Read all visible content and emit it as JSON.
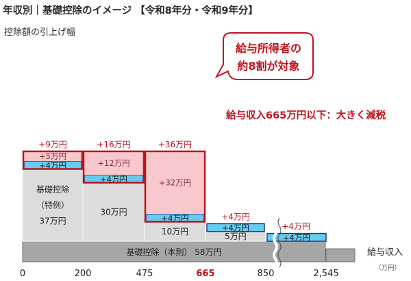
{
  "title": "年収別｜基礎控除のイメージ 【令和8年分・令和9年分】",
  "ylabel": "控除額の引上げ幅",
  "xlabel": "給与収入",
  "x_unit": "（万円）",
  "callout": {
    "line1": "給与所得者の",
    "line2": "約8割が対象"
  },
  "note": "給与収入665万円以下：大きく減税",
  "colors": {
    "gray": "#dcdcdc",
    "dark_gray": "#a6a6a6",
    "pink": "#f9c8cc",
    "blue": "#66ccf0",
    "red": "#c0121c",
    "navy": "#1e3a8a"
  },
  "chart_data": {
    "type": "stacked-bar",
    "x_ticks": [
      "0",
      "200",
      "475",
      "665",
      "850",
      "2,545"
    ],
    "highlight_tick": "665",
    "base": {
      "label": "基礎控除（本則） 58万円",
      "value": 58,
      "range": [
        "0",
        "2,545"
      ]
    },
    "brackets": [
      {
        "range": [
          "0",
          "200"
        ],
        "special_label": [
          "基礎控除",
          "（特例）",
          "37万円"
        ],
        "special": 37,
        "blue": 4,
        "blue_label": "+4万円",
        "pink": 5,
        "pink_label": "+5万円",
        "total_label": "+9万円"
      },
      {
        "range": [
          "200",
          "475"
        ],
        "special_label": [
          "30万円"
        ],
        "special": 30,
        "blue": 4,
        "blue_label": "+4万円",
        "pink": 12,
        "pink_label": "+12万円",
        "total_label": "+16万円"
      },
      {
        "range": [
          "475",
          "665"
        ],
        "special_label": [
          "10万円"
        ],
        "special": 10,
        "blue": 4,
        "blue_label": "+4万円",
        "pink": 32,
        "pink_label": "+32万円",
        "total_label": "+36万円"
      },
      {
        "range": [
          "665",
          "850"
        ],
        "special_label": [
          "5万円"
        ],
        "special": 5,
        "blue": 4,
        "blue_label": "+4万円",
        "pink": 0,
        "pink_label": "",
        "total_label": "+4万円"
      },
      {
        "range": [
          "850",
          "2,545"
        ],
        "special_label": [],
        "special": 0,
        "blue": 4,
        "blue_label": "+4万円",
        "pink": 0,
        "pink_label": "",
        "total_label": "+4万円"
      }
    ]
  }
}
